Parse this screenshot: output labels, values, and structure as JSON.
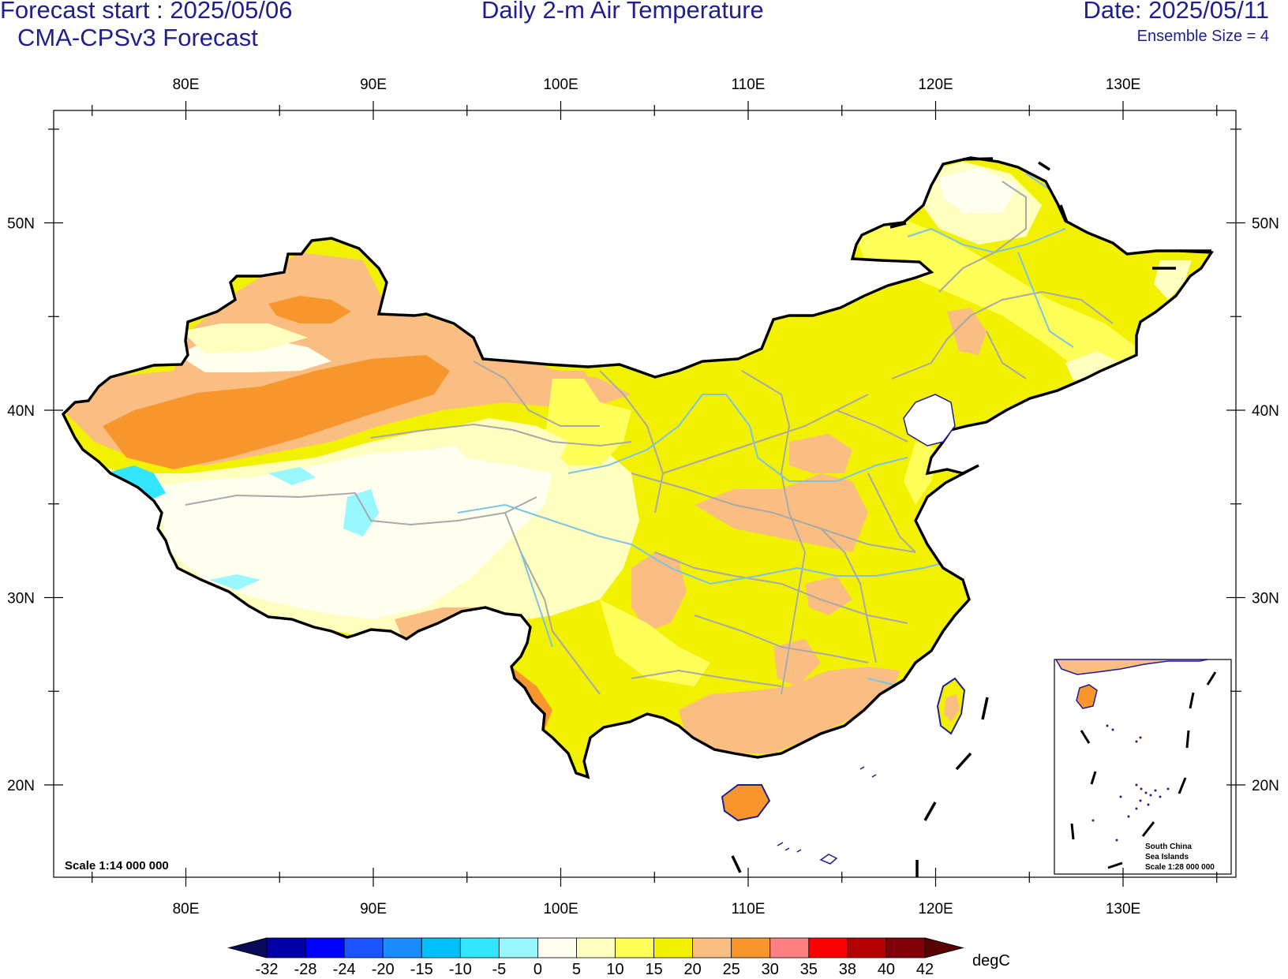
{
  "header": {
    "forecast_start": "Forecast start : 2025/05/06",
    "model": "CMA-CPSv3 Forecast",
    "title": "Daily 2-m Air Temperature",
    "date": "Date: 2025/05/11",
    "ensemble": "Ensemble Size = 4",
    "color": "#1f1f8f"
  },
  "map": {
    "lon_range": [
      73,
      136
    ],
    "lat_range": [
      15,
      56
    ],
    "lon_ticks": [
      {
        "value": 80,
        "label": "80E"
      },
      {
        "value": 90,
        "label": "90E"
      },
      {
        "value": 100,
        "label": "100E"
      },
      {
        "value": 110,
        "label": "110E"
      },
      {
        "value": 120,
        "label": "120E"
      },
      {
        "value": 130,
        "label": "130E"
      }
    ],
    "lat_ticks": [
      {
        "value": 20,
        "label": "20N"
      },
      {
        "value": 30,
        "label": "30N"
      },
      {
        "value": 40,
        "label": "40N"
      },
      {
        "value": 50,
        "label": "50N"
      }
    ],
    "scale_label": "Scale 1:14 000 000",
    "inset": {
      "line1": "South China",
      "line2": "Sea Islands",
      "line3": "Scale 1:28 000 000"
    }
  },
  "colorbar": {
    "unit": "degC",
    "labels": [
      "-32",
      "-28",
      "-24",
      "-20",
      "-15",
      "-10",
      "-5",
      "0",
      "5",
      "10",
      "15",
      "20",
      "25",
      "30",
      "35",
      "38",
      "40",
      "42"
    ],
    "colors": [
      "#0a0a5a",
      "#0000a8",
      "#0000ff",
      "#1a53ff",
      "#1a8cff",
      "#00bfff",
      "#33e6ff",
      "#99f7ff",
      "#fffff0",
      "#ffffc0",
      "#ffff59",
      "#f2f200",
      "#fabe82",
      "#f7962d",
      "#ff8080",
      "#ff0000",
      "#b30000",
      "#80000a",
      "#5a0000"
    ]
  }
}
